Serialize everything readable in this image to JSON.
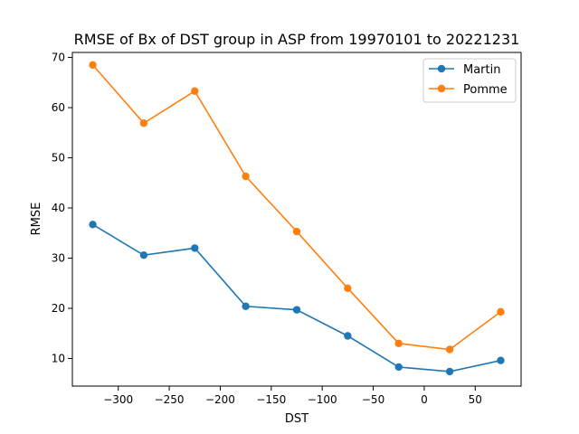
{
  "chart_data": {
    "type": "line",
    "title": "RMSE of Bx of DST group in ASP from 19970101 to 20221231",
    "xlabel": "DST",
    "ylabel": "RMSE",
    "xlim": [
      -345,
      95
    ],
    "ylim": [
      4.5,
      71
    ],
    "xticks": [
      -300,
      -250,
      -200,
      -150,
      -100,
      -50,
      0,
      50
    ],
    "yticks": [
      10,
      20,
      30,
      40,
      50,
      60,
      70
    ],
    "x": [
      -325,
      -275,
      -225,
      -175,
      -125,
      -75,
      -25,
      25,
      75
    ],
    "series": [
      {
        "name": "Martin",
        "color": "#1f77b4",
        "values": [
          36.7,
          30.6,
          32.0,
          20.4,
          19.7,
          14.5,
          8.3,
          7.4,
          9.6
        ]
      },
      {
        "name": "Pomme",
        "color": "#ff7f0e",
        "values": [
          68.5,
          56.9,
          63.3,
          46.3,
          35.3,
          24.0,
          13.0,
          11.8,
          19.3
        ]
      }
    ],
    "grid": false,
    "legend_position": "upper right"
  }
}
